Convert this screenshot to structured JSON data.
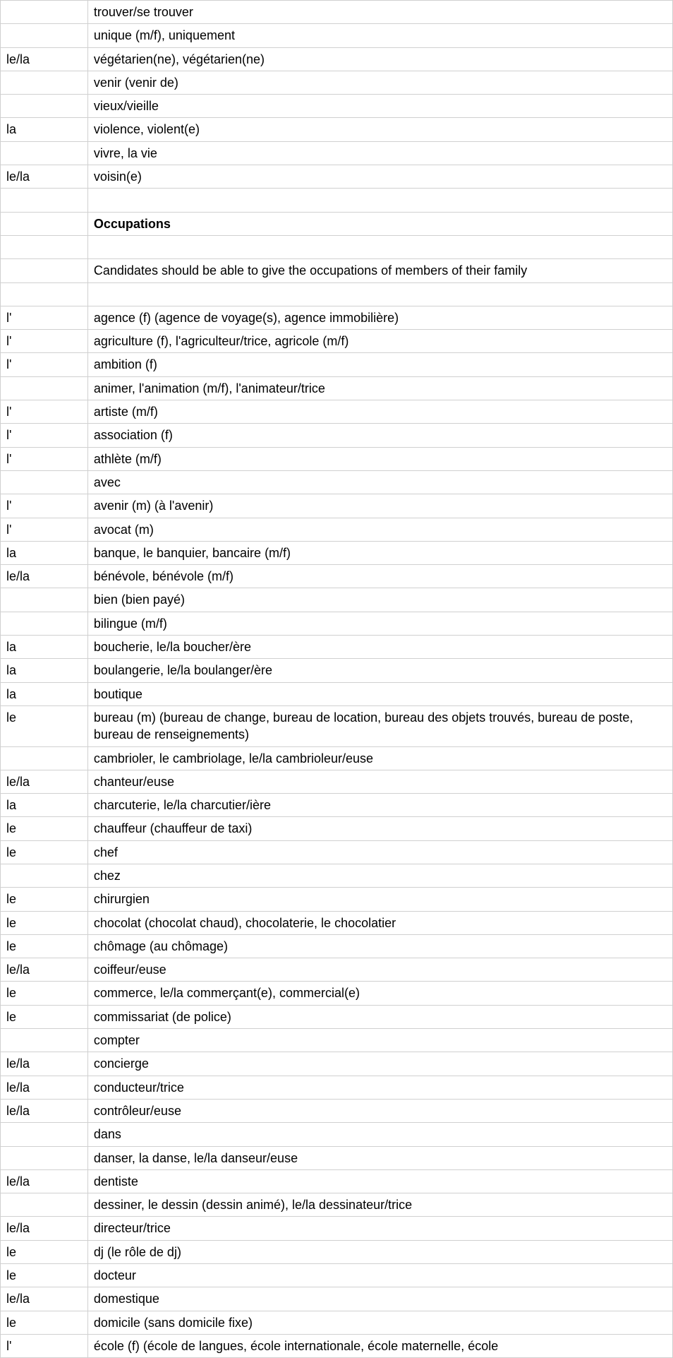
{
  "table": {
    "rows": [
      {
        "article": "",
        "term": "trouver/se trouver",
        "bold": false
      },
      {
        "article": "",
        "term": "unique (m/f), uniquement",
        "bold": false
      },
      {
        "article": "le/la",
        "term": "végétarien(ne), végétarien(ne)",
        "bold": false
      },
      {
        "article": "",
        "term": "venir (venir de)",
        "bold": false
      },
      {
        "article": "",
        "term": "vieux/vieille",
        "bold": false
      },
      {
        "article": "la",
        "term": "violence, violent(e)",
        "bold": false
      },
      {
        "article": "",
        "term": "vivre, la vie",
        "bold": false
      },
      {
        "article": "le/la",
        "term": "voisin(e)",
        "bold": false
      },
      {
        "article": "",
        "term": "",
        "bold": false
      },
      {
        "article": "",
        "term": "Occupations",
        "bold": true
      },
      {
        "article": "",
        "term": "",
        "bold": false
      },
      {
        "article": "",
        "term": "Candidates should be able to give the occupations of members of their family",
        "bold": false
      },
      {
        "article": "",
        "term": "",
        "bold": false
      },
      {
        "article": "l'",
        "term": "agence (f) (agence de voyage(s), agence immobilière)",
        "bold": false
      },
      {
        "article": "l'",
        "term": "agriculture (f), l'agriculteur/trice, agricole (m/f)",
        "bold": false
      },
      {
        "article": "l'",
        "term": "ambition (f)",
        "bold": false
      },
      {
        "article": "",
        "term": "animer, l'animation (m/f), l'animateur/trice",
        "bold": false
      },
      {
        "article": "l'",
        "term": "artiste (m/f)",
        "bold": false
      },
      {
        "article": "l'",
        "term": "association (f)",
        "bold": false
      },
      {
        "article": "l'",
        "term": "athlète (m/f)",
        "bold": false
      },
      {
        "article": "",
        "term": "avec",
        "bold": false
      },
      {
        "article": "l'",
        "term": "avenir (m) (à l'avenir)",
        "bold": false
      },
      {
        "article": "l'",
        "term": "avocat (m)",
        "bold": false
      },
      {
        "article": "la",
        "term": "banque, le banquier, bancaire (m/f)",
        "bold": false
      },
      {
        "article": "le/la",
        "term": "bénévole, bénévole (m/f)",
        "bold": false
      },
      {
        "article": "",
        "term": "bien (bien payé)",
        "bold": false
      },
      {
        "article": "",
        "term": "bilingue (m/f)",
        "bold": false
      },
      {
        "article": "la",
        "term": "boucherie, le/la boucher/ère",
        "bold": false
      },
      {
        "article": "la",
        "term": "boulangerie, le/la boulanger/ère",
        "bold": false
      },
      {
        "article": "la",
        "term": "boutique",
        "bold": false
      },
      {
        "article": "le",
        "term": "bureau (m) (bureau de change, bureau de location, bureau des objets trouvés, bureau de poste, bureau de renseignements)",
        "bold": false
      },
      {
        "article": "",
        "term": "cambrioler, le cambriolage, le/la cambrioleur/euse",
        "bold": false
      },
      {
        "article": "le/la",
        "term": "chanteur/euse",
        "bold": false
      },
      {
        "article": "la",
        "term": "charcuterie, le/la charcutier/ière",
        "bold": false
      },
      {
        "article": "le",
        "term": "chauffeur (chauffeur de taxi)",
        "bold": false
      },
      {
        "article": "le",
        "term": "chef",
        "bold": false
      },
      {
        "article": "",
        "term": "chez",
        "bold": false
      },
      {
        "article": "le",
        "term": "chirurgien",
        "bold": false
      },
      {
        "article": "le",
        "term": "chocolat (chocolat chaud), chocolaterie, le chocolatier",
        "bold": false
      },
      {
        "article": "le",
        "term": "chômage (au chômage)",
        "bold": false
      },
      {
        "article": "le/la",
        "term": "coiffeur/euse",
        "bold": false
      },
      {
        "article": "le",
        "term": "commerce, le/la commerçant(e), commercial(e)",
        "bold": false
      },
      {
        "article": "le",
        "term": "commissariat (de police)",
        "bold": false
      },
      {
        "article": "",
        "term": "compter",
        "bold": false
      },
      {
        "article": "le/la",
        "term": "concierge",
        "bold": false
      },
      {
        "article": "le/la",
        "term": "conducteur/trice",
        "bold": false
      },
      {
        "article": "le/la",
        "term": "contrôleur/euse",
        "bold": false
      },
      {
        "article": "",
        "term": "dans",
        "bold": false
      },
      {
        "article": "",
        "term": "danser, la danse, le/la danseur/euse",
        "bold": false
      },
      {
        "article": "le/la",
        "term": "dentiste",
        "bold": false
      },
      {
        "article": "",
        "term": "dessiner, le dessin (dessin animé), le/la dessinateur/trice",
        "bold": false
      },
      {
        "article": "le/la",
        "term": "directeur/trice",
        "bold": false
      },
      {
        "article": "le",
        "term": "dj (le rôle de dj)",
        "bold": false
      },
      {
        "article": "le",
        "term": "docteur",
        "bold": false
      },
      {
        "article": "le/la",
        "term": "domestique",
        "bold": false
      },
      {
        "article": "le",
        "term": "domicile (sans domicile fixe)",
        "bold": false
      },
      {
        "article": "l'",
        "term": "école (f) (école de langues, école internationale, école maternelle, école",
        "bold": false
      }
    ]
  },
  "styles": {
    "border_color": "#d0d0d0",
    "text_color": "#000000",
    "background_color": "#ffffff",
    "font_size": 18,
    "col1_width_pct": 13,
    "col2_width_pct": 87
  }
}
